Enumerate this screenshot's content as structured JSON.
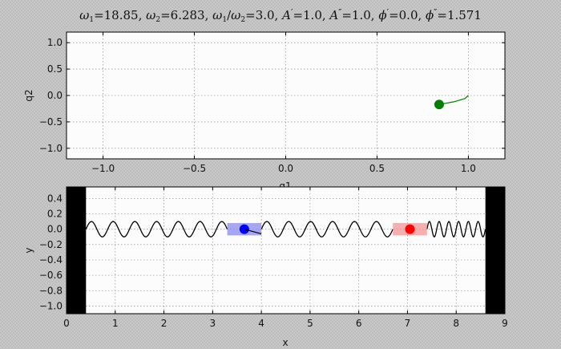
{
  "title": {
    "w1_sym": "ω",
    "w1_sub": "1",
    "w1_val": "=18.85, ",
    "w2_sym": "ω",
    "w2_sub": "2",
    "w2_val": "=6.283, ",
    "ratio_sym1": "ω",
    "ratio_sub1": "1",
    "ratio_slash": "/",
    "ratio_sym2": "ω",
    "ratio_sub2": "2",
    "ratio_val": "=3.0, ",
    "a1_sym": "A",
    "a1_prime": "′",
    "a1_val": "=1.0, ",
    "a2_sym": "A",
    "a2_prime": "″",
    "a2_val": "=1.0, ",
    "p1_sym": "ϕ",
    "p1_prime": "′",
    "p1_val": "=0.0, ",
    "p2_sym": "ϕ",
    "p2_prime": "″",
    "p2_val": "=1.571"
  },
  "chart_data": [
    {
      "type": "scatter",
      "ylabel": "q2",
      "xlabel": "q1",
      "xlim": [
        -1.2,
        1.2
      ],
      "ylim": [
        -1.2,
        1.2
      ],
      "xticks": [
        -1.0,
        -0.5,
        0.0,
        0.5,
        1.0
      ],
      "xtick_labels": [
        "−1.0",
        "−0.5",
        "0.0",
        "0.5",
        "1.0"
      ],
      "yticks": [
        1.0,
        0.5,
        0.0,
        -0.5,
        -1.0
      ],
      "ytick_labels": [
        "1.0",
        "0.5",
        "0.0",
        "−0.5",
        "−1.0"
      ],
      "grid": true,
      "point": {
        "x": 0.84,
        "y": -0.17,
        "color": "#007f00"
      },
      "trail": [
        [
          0.84,
          -0.17
        ],
        [
          0.92,
          -0.12
        ],
        [
          0.98,
          -0.06
        ],
        [
          1.0,
          0.0
        ]
      ],
      "trail_color": "#007f00"
    },
    {
      "type": "line",
      "xlabel": "x",
      "ylabel": "y",
      "xlim": [
        0,
        9
      ],
      "ylim": [
        -1.1,
        0.55
      ],
      "xticks": [
        0,
        1,
        2,
        3,
        4,
        5,
        6,
        7,
        8,
        9
      ],
      "xtick_labels": [
        "0",
        "1",
        "2",
        "3",
        "4",
        "5",
        "6",
        "7",
        "8",
        "9"
      ],
      "yticks": [
        0.4,
        0.2,
        0.0,
        -0.2,
        -0.4,
        -0.6,
        -0.8,
        -1.0
      ],
      "ytick_labels": [
        "0.4",
        "0.2",
        "0.0",
        "−0.2",
        "−0.4",
        "−0.6",
        "−0.8",
        "−1.0"
      ],
      "grid": true,
      "walls": [
        {
          "from": 0,
          "to": 0.4
        },
        {
          "from": 8.6,
          "to": 9
        }
      ],
      "wall_color": "#000000",
      "string_color": "#000000",
      "string_amplitude": 0.1,
      "segments": [
        {
          "from": 0.4,
          "to": 3.3,
          "cycles": 6.5
        },
        {
          "from": 4.0,
          "to": 6.7,
          "cycles": 6
        },
        {
          "from": 7.4,
          "to": 8.6,
          "cycles": 6
        }
      ],
      "masses": [
        {
          "center": 3.65,
          "y": 0.0,
          "box_x": [
            3.3,
            4.0
          ],
          "box_y": [
            -0.08,
            0.08
          ],
          "color": "#0000ff",
          "box_fill": "#8a8af0"
        },
        {
          "center": 7.05,
          "y": 0.0,
          "box_x": [
            6.7,
            7.4
          ],
          "box_y": [
            -0.08,
            0.08
          ],
          "color": "#ff0000",
          "box_fill": "#f39595"
        }
      ],
      "spring_offset": {
        "x": [
          3.65,
          4.0
        ],
        "y": [
          0.0,
          -0.06
        ]
      }
    }
  ]
}
